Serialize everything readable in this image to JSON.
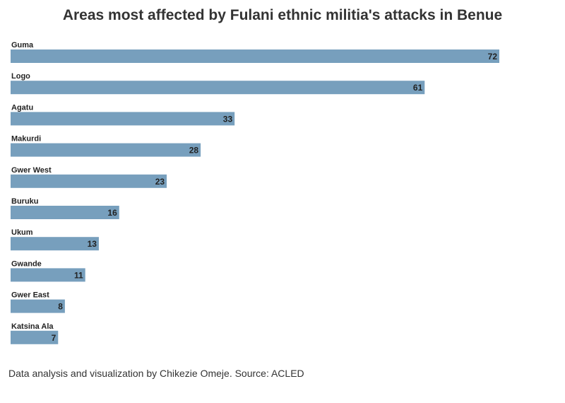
{
  "title": "Areas most affected by Fulani ethnic militia's attacks in Benue",
  "footer": "Data analysis and visualization by Chikezie Omeje. Source: ACLED",
  "colors": {
    "bar": "#779fbd",
    "text": "#222222"
  },
  "chart_data": {
    "type": "bar",
    "orientation": "horizontal",
    "title": "Areas most affected by Fulani ethnic militia's attacks in Benue",
    "xlabel": "",
    "ylabel": "",
    "categories": [
      "Guma",
      "Logo",
      "Agatu",
      "Makurdi",
      "Gwer West",
      "Buruku",
      "Ukum",
      "Gwande",
      "Gwer East",
      "Katsina Ala"
    ],
    "values": [
      72,
      61,
      33,
      28,
      23,
      16,
      13,
      11,
      8,
      7
    ],
    "xlim": [
      0,
      72
    ],
    "grid": false,
    "legend": "none"
  }
}
